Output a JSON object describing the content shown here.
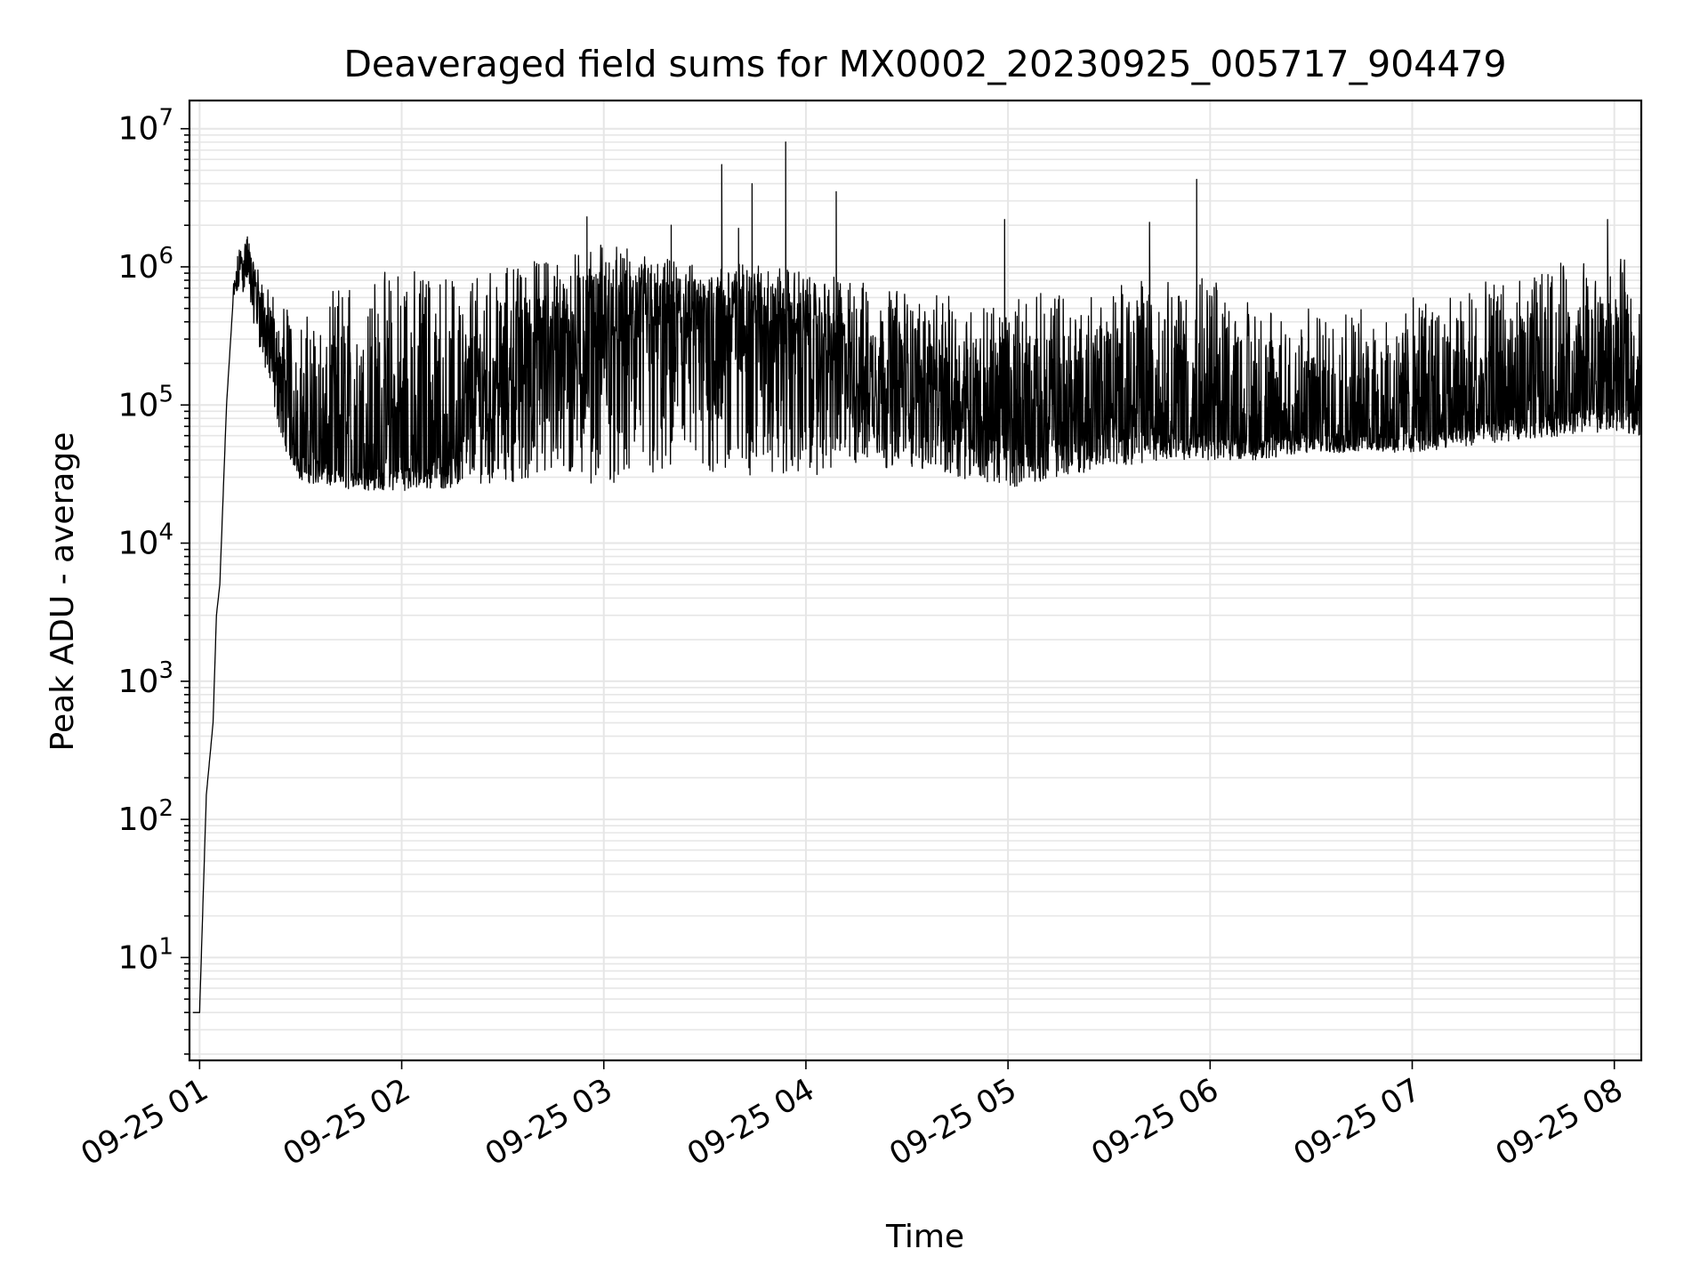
{
  "chart_data": {
    "type": "line",
    "title": "Deaveraged field sums for MX0002_20230925_005717_904479",
    "xlabel": "Time",
    "ylabel": "Peak ADU - average",
    "y_scale": "log",
    "ylim": [
      1.8,
      16000000
    ],
    "xlim": [
      "2023-09-25 00:57",
      "2023-09-25 08:08"
    ],
    "grid": true,
    "line_color": "#000000",
    "grid_color": "#e6e6e6",
    "x_ticks": [
      "09-25 01",
      "09-25 02",
      "09-25 03",
      "09-25 04",
      "09-25 05",
      "09-25 06",
      "09-25 07",
      "09-25 08"
    ],
    "y_ticks": [
      {
        "value": 10,
        "base": "10",
        "exp": "1"
      },
      {
        "value": 100,
        "base": "10",
        "exp": "2"
      },
      {
        "value": 1000,
        "base": "10",
        "exp": "3"
      },
      {
        "value": 10000,
        "base": "10",
        "exp": "4"
      },
      {
        "value": 100000,
        "base": "10",
        "exp": "5"
      },
      {
        "value": 1000000,
        "base": "10",
        "exp": "6"
      },
      {
        "value": 10000000,
        "base": "10",
        "exp": "7"
      }
    ],
    "series": [
      {
        "x": [
          "2023-09-25 00:58",
          "2023-09-25 01:00",
          "2023-09-25 01:02",
          "2023-09-25 01:04",
          "2023-09-25 01:05",
          "2023-09-25 01:06",
          "2023-09-25 01:08",
          "2023-09-25 01:10",
          "2023-09-25 01:12",
          "2023-09-25 01:14",
          "2023-09-25 01:16",
          "2023-09-25 01:18",
          "2023-09-25 01:20",
          "2023-09-25 01:25",
          "2023-09-25 01:30",
          "2023-09-25 01:40",
          "2023-09-25 01:50",
          "2023-09-25 02:00",
          "2023-09-25 02:15",
          "2023-09-25 02:30",
          "2023-09-25 02:45",
          "2023-09-25 03:00",
          "2023-09-25 03:15",
          "2023-09-25 03:30",
          "2023-09-25 03:45",
          "2023-09-25 04:00",
          "2023-09-25 04:15",
          "2023-09-25 04:30",
          "2023-09-25 04:45",
          "2023-09-25 05:00",
          "2023-09-25 05:15",
          "2023-09-25 05:30",
          "2023-09-25 05:45",
          "2023-09-25 06:00",
          "2023-09-25 06:15",
          "2023-09-25 06:30",
          "2023-09-25 06:45",
          "2023-09-25 07:00",
          "2023-09-25 07:15",
          "2023-09-25 07:30",
          "2023-09-25 07:45",
          "2023-09-25 08:00",
          "2023-09-25 08:08"
        ],
        "y": [
          4,
          4,
          150,
          500,
          3000,
          5000,
          100000,
          600000,
          1000000,
          1200000,
          800000,
          500000,
          300000,
          80000,
          40000,
          35000,
          32000,
          35000,
          40000,
          150000,
          250000,
          300000,
          350000,
          400000,
          450000,
          300000,
          150000,
          120000,
          100000,
          60000,
          60000,
          70000,
          70000,
          60000,
          55000,
          60000,
          60000,
          65000,
          70000,
          80000,
          90000,
          100000,
          100000
        ]
      }
    ],
    "noise_band_low": [
      4,
      4,
      150,
      500,
      3000,
      5000,
      100000,
      500000,
      700000,
      600000,
      400000,
      250000,
      150000,
      50000,
      28000,
      25000,
      24000,
      24000,
      25000,
      28000,
      27000,
      27000,
      26000,
      28000,
      30000,
      30000,
      35000,
      35000,
      30000,
      25000,
      30000,
      35000,
      40000,
      40000,
      40000,
      45000,
      45000,
      45000,
      50000,
      55000,
      60000,
      65000,
      60000
    ],
    "noise_band_high": [
      4,
      4,
      150,
      500,
      3000,
      5000,
      100000,
      800000,
      1500000,
      1800000,
      1200000,
      900000,
      700000,
      600000,
      400000,
      700000,
      900000,
      1000000,
      900000,
      1000000,
      1200000,
      1500000,
      1200000,
      1000000,
      1100000,
      900000,
      800000,
      700000,
      600000,
      600000,
      700000,
      800000,
      1000000,
      800000,
      600000,
      500000,
      500000,
      600000,
      700000,
      900000,
      1100000,
      1200000,
      1000000
    ],
    "spikes": [
      {
        "x": "2023-09-25 03:35",
        "y": 5500000
      },
      {
        "x": "2023-09-25 03:44",
        "y": 4000000
      },
      {
        "x": "2023-09-25 03:54",
        "y": 8000000
      },
      {
        "x": "2023-09-25 04:09",
        "y": 3500000
      },
      {
        "x": "2023-09-25 05:56",
        "y": 4300000
      },
      {
        "x": "2023-09-25 02:55",
        "y": 2300000
      },
      {
        "x": "2023-09-25 04:59",
        "y": 2200000
      },
      {
        "x": "2023-09-25 05:42",
        "y": 2100000
      },
      {
        "x": "2023-09-25 07:58",
        "y": 2200000
      },
      {
        "x": "2023-09-25 03:20",
        "y": 2000000
      },
      {
        "x": "2023-09-25 03:40",
        "y": 1900000
      }
    ]
  }
}
